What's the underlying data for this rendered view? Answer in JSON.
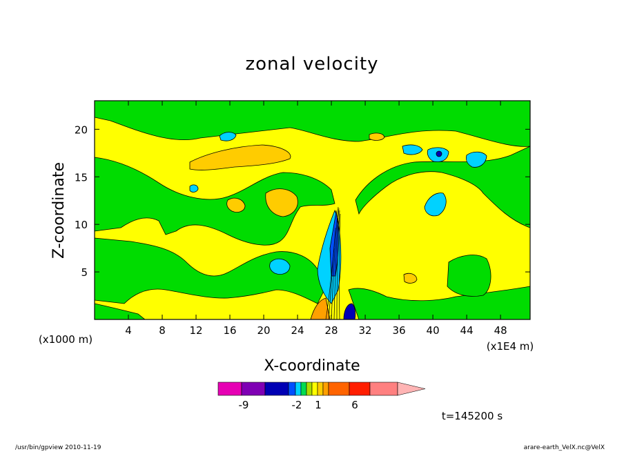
{
  "chart_data": {
    "type": "heatmap",
    "title": "zonal velocity",
    "xlabel": "X-coordinate",
    "ylabel": "Z-coordinate",
    "x_unit_left": "(x1000 m)",
    "x_unit_right": "(x1E4 m)",
    "xlim": [
      0,
      51.5
    ],
    "ylim": [
      0,
      23
    ],
    "xticks": [
      4,
      8,
      12,
      16,
      20,
      24,
      28,
      32,
      36,
      40,
      44,
      48
    ],
    "yticks": [
      5,
      10,
      15,
      20
    ],
    "grid": false,
    "colorbar": {
      "labeled_levels": [
        "-9",
        "-2",
        "1",
        "6"
      ],
      "colors": [
        "#e600b4",
        "#7f00b4",
        "#0000b4",
        "#0050ff",
        "#00d2ff",
        "#00dc50",
        "#aadc00",
        "#ffff00",
        "#ffcc00",
        "#ffa000",
        "#ff6400",
        "#ff1e00",
        "#ff8080",
        "#ffb4b4"
      ]
    },
    "timestamp": "t=145200 s"
  },
  "footer": {
    "left": "/usr/bin/gpview   2010-11-19",
    "right": "arare-earth_VelX.nc@VelX"
  }
}
